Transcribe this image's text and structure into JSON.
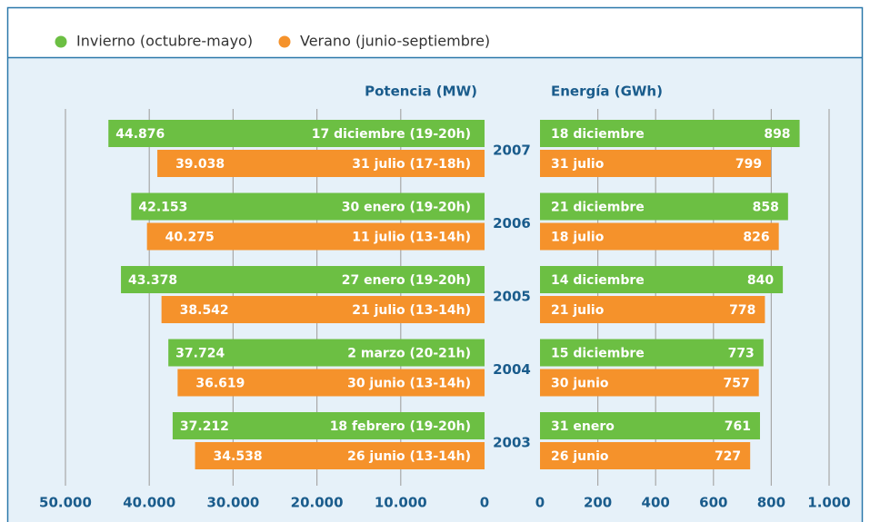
{
  "chart_data": [
    {
      "type": "bar",
      "title": "Potencia (MW)",
      "xreverse": true,
      "grid": true,
      "categories": [
        "2007",
        "2006",
        "2005",
        "2004",
        "2003"
      ],
      "xlim": [
        0,
        50000
      ],
      "xticks": [
        {
          "value": 50000,
          "label": "50.000"
        },
        {
          "value": 40000,
          "label": "40.000"
        },
        {
          "value": 30000,
          "label": "30.000"
        },
        {
          "value": 20000,
          "label": "20.000"
        },
        {
          "value": 10000,
          "label": "10.000"
        },
        0
      ],
      "series": [
        {
          "name": "Invierno (octubre-mayo)",
          "color": "#6cbf43",
          "values": [
            44876,
            42153,
            43378,
            37724,
            37212
          ],
          "value_labels": [
            "44.876",
            "42.153",
            "43.378",
            "37.724",
            "37.212"
          ],
          "dates": [
            "17 diciembre (19-20h)",
            "30 enero (19-20h)",
            "27 enero (19-20h)",
            "2 marzo (20-21h)",
            "18 febrero (19-20h)"
          ]
        },
        {
          "name": "Verano (junio-septiembre)",
          "color": "#f5922b",
          "values": [
            39038,
            40275,
            38542,
            36619,
            34538
          ],
          "value_labels": [
            "39.038",
            "40.275",
            "38.542",
            "36.619",
            "34.538"
          ],
          "dates": [
            "31 julio (17-18h)",
            "11 julio (13-14h)",
            "21 julio (13-14h)",
            "30 junio (13-14h)",
            "26 junio (13-14h)"
          ]
        }
      ]
    },
    {
      "type": "bar",
      "title": "Energía (GWh)",
      "grid": true,
      "xlim": [
        0,
        1000
      ],
      "xticks": [
        0,
        200,
        400,
        600,
        800,
        {
          "value": 1000,
          "label": "1.000"
        }
      ],
      "series": [
        {
          "color": "#6cbf43",
          "values": [
            898,
            858,
            840,
            773,
            761
          ],
          "dates": [
            "18 diciembre",
            "21 diciembre",
            "14 diciembre",
            "15 diciembre",
            "31 enero"
          ]
        },
        {
          "color": "#f5922b",
          "values": [
            799,
            826,
            778,
            757,
            727
          ],
          "dates": [
            "31 julio",
            "18 julio",
            "21 julio",
            "30 junio",
            "26 junio"
          ]
        }
      ]
    }
  ]
}
